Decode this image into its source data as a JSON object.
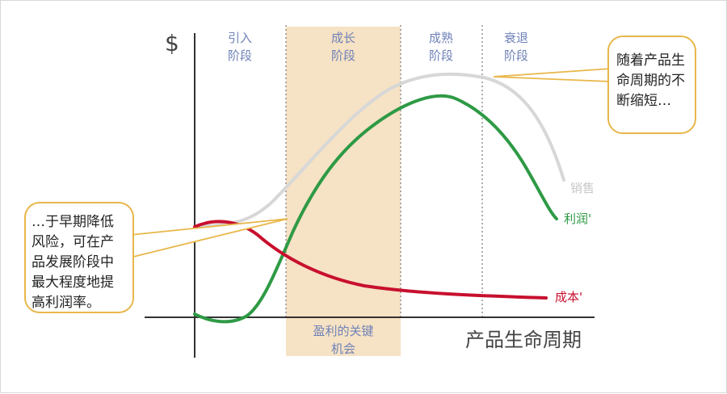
{
  "axis": {
    "y_label": "$",
    "x_label": "产品生命周期"
  },
  "phases": [
    {
      "line1": "引入",
      "line2": "阶段"
    },
    {
      "line1": "成长",
      "line2": "阶段"
    },
    {
      "line1": "成熟",
      "line2": "阶段"
    },
    {
      "line1": "衰退",
      "line2": "阶段"
    }
  ],
  "profit_zone": {
    "line1": "盈利的关键",
    "line2": "机会"
  },
  "series": {
    "sales": {
      "label": "销售",
      "color": "#d7d7d7"
    },
    "profit": {
      "label": "利润'",
      "color": "#2e9a45"
    },
    "cost": {
      "label": "成本'",
      "color": "#c8102e"
    }
  },
  "callout_right": {
    "lines": [
      "随着产品生",
      "命周期的不",
      "断缩短…"
    ]
  },
  "callout_left": {
    "lines": [
      "…于早期降低",
      "风险，可在产",
      "品发展阶段中",
      "最大程度地提",
      "高利润率。"
    ]
  },
  "colors": {
    "callout_border": "#e8b74a",
    "zone_fill": "#f6e2c4",
    "phase_text": "#6f82b8",
    "axis": "#333333"
  }
}
